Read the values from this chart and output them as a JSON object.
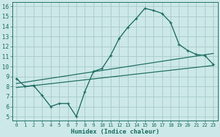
{
  "title": "",
  "xlabel": "Humidex (Indice chaleur)",
  "bg_color": "#cce8e8",
  "grid_color": "#aacccc",
  "line_color": "#1a6b60",
  "xlim": [
    -0.5,
    23.5
  ],
  "ylim": [
    4.6,
    16.4
  ],
  "xticks": [
    0,
    1,
    2,
    3,
    4,
    5,
    6,
    7,
    8,
    9,
    10,
    11,
    12,
    13,
    14,
    15,
    16,
    17,
    18,
    19,
    20,
    21,
    22,
    23
  ],
  "yticks": [
    5,
    6,
    7,
    8,
    9,
    10,
    11,
    12,
    13,
    14,
    15,
    16
  ],
  "curve_x": [
    0,
    1,
    2,
    3,
    4,
    5,
    6,
    7,
    8,
    9,
    10,
    11,
    12,
    13,
    14,
    15,
    16,
    17,
    18,
    19,
    20,
    21,
    22,
    23
  ],
  "curve_y": [
    8.8,
    8.0,
    8.1,
    7.1,
    6.0,
    6.3,
    6.3,
    5.0,
    7.5,
    9.5,
    9.8,
    11.1,
    12.8,
    13.9,
    14.8,
    15.8,
    15.6,
    15.3,
    14.4,
    12.2,
    11.6,
    11.2,
    11.1,
    10.2
  ],
  "line1_x": [
    0,
    23
  ],
  "line1_y": [
    8.3,
    11.3
  ],
  "line2_x": [
    0,
    23
  ],
  "line2_y": [
    7.9,
    10.1
  ],
  "xlabel_fontsize": 6.5,
  "tick_fontsize_x": 5.2,
  "tick_fontsize_y": 6.0
}
